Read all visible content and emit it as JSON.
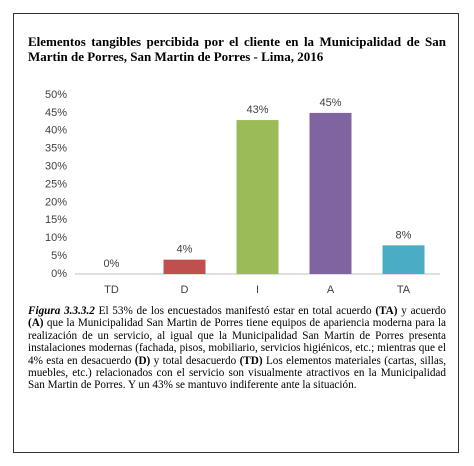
{
  "title": "Elementos tangibles percibida por el cliente en la Municipalidad de San Martin de Porres, San Martin de Porres - Lima, 2016",
  "chart_data": {
    "type": "bar",
    "categories": [
      "TD",
      "D",
      "I",
      "A",
      "TA"
    ],
    "values": [
      0,
      4,
      43,
      45,
      8
    ],
    "value_labels": [
      "0%",
      "4%",
      "43%",
      "45%",
      "8%"
    ],
    "colors": [
      "#4f81bd",
      "#c0504d",
      "#9bbb59",
      "#8064a2",
      "#4bacc6"
    ],
    "ylim": [
      0,
      50
    ],
    "yticks": [
      {
        "value": 0,
        "label": "0%"
      },
      {
        "value": 5,
        "label": "5%"
      },
      {
        "value": 10,
        "label": "10%"
      },
      {
        "value": 15,
        "label": "15%"
      },
      {
        "value": 20,
        "label": "20%"
      },
      {
        "value": 25,
        "label": "25%"
      },
      {
        "value": 30,
        "label": "30%"
      },
      {
        "value": 35,
        "label": "35%"
      },
      {
        "value": 40,
        "label": "40%"
      },
      {
        "value": 45,
        "label": "45%"
      },
      {
        "value": 50,
        "label": "50%"
      }
    ],
    "grid": false
  },
  "caption": {
    "label": "Figura 3.3.3.2",
    "parts": [
      " El 53% de los encuestados manifestó estar en total acuerdo ",
      "(TA)",
      " y acuerdo ",
      "(A)",
      " que la Municipalidad San Martin de Porres tiene equipos de apariencia moderna para la realización de un servicio, al igual que la Municipalidad San Martin de Porres presenta instalaciones modernas (fachada, pisos, mobiliario, servicios higiénicos, etc.; mientras que el 4% esta en desacuerdo ",
      "(D)",
      " y total desacuerdo ",
      "(TD)",
      " Los elementos materiales (cartas, sillas, muebles, etc.) relacionados con el servicio son visualmente atractivos en la Municipalidad San Martin de Porres. Y un 43% se mantuvo indiferente ante la situación."
    ]
  }
}
